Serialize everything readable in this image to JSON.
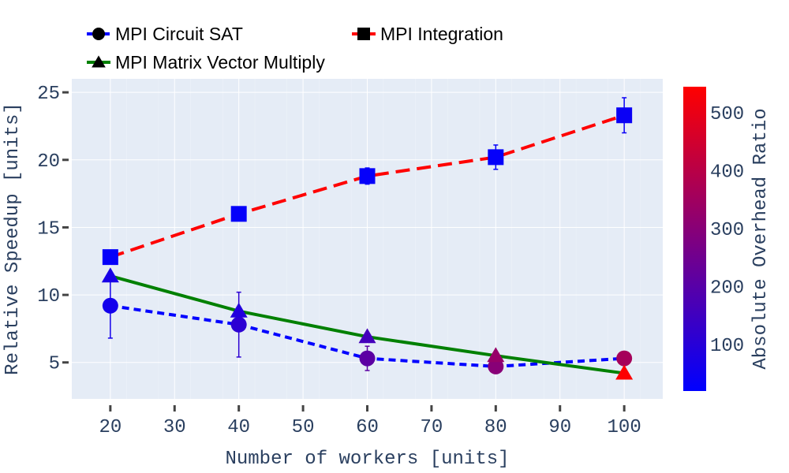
{
  "chart_data": {
    "type": "line",
    "title": "",
    "xlabel": "Number of workers [units]",
    "ylabel": "Relative Speedup [units]",
    "xlim": [
      14,
      106
    ],
    "ylim": [
      2.3,
      26
    ],
    "x_ticks": [
      20,
      30,
      40,
      50,
      60,
      70,
      80,
      90,
      100
    ],
    "y_ticks": [
      5,
      10,
      15,
      20,
      25
    ],
    "grid": true,
    "legend_placement": "top",
    "background_color": "#e5ecf6",
    "colorbar": {
      "title": "Absolute Overhead Ratio",
      "min": 20,
      "max": 545,
      "ticks": [
        100,
        200,
        300,
        400,
        500
      ],
      "colors": [
        "#0000ff",
        "#ff0000"
      ]
    },
    "series": [
      {
        "name": "MPI Circuit SAT",
        "marker": "circle",
        "line_color": "#0000ff",
        "dash": "dash",
        "x": [
          20,
          40,
          60,
          80,
          100
        ],
        "y": [
          9.2,
          7.8,
          5.3,
          4.7,
          5.3
        ],
        "error": [
          2.4,
          2.4,
          0.9,
          0.0,
          0.0
        ],
        "overhead_ratio": [
          60,
          110,
          210,
          300,
          360
        ]
      },
      {
        "name": "MPI Integration",
        "marker": "square",
        "line_color": "#ff0000",
        "dash": "longdash",
        "x": [
          20,
          40,
          60,
          80,
          100
        ],
        "y": [
          12.8,
          16.0,
          18.8,
          20.2,
          23.3
        ],
        "error": [
          0.0,
          0.0,
          0.6,
          0.9,
          1.3
        ],
        "overhead_ratio": [
          30,
          30,
          30,
          30,
          40
        ]
      },
      {
        "name": "MPI Matrix Vector Multiply",
        "marker": "triangle",
        "line_color": "#008000",
        "dash": "solid",
        "x": [
          20,
          40,
          60,
          80,
          100
        ],
        "y": [
          11.4,
          8.8,
          6.9,
          5.5,
          4.2
        ],
        "error": [
          0,
          0,
          0,
          0,
          0
        ],
        "overhead_ratio": [
          70,
          90,
          160,
          330,
          540
        ]
      }
    ]
  }
}
